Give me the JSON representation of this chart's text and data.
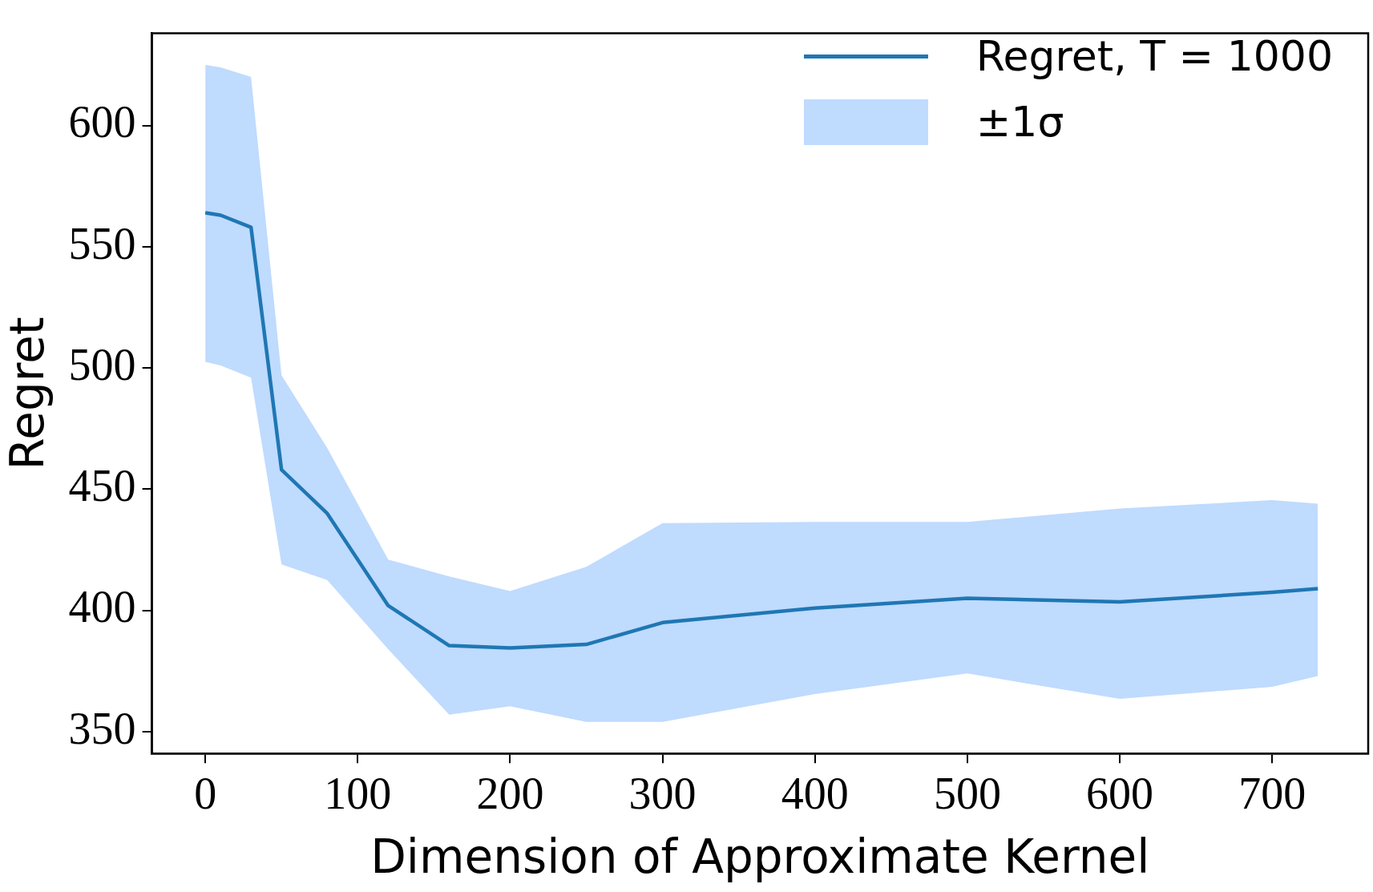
{
  "chart_data": {
    "type": "line",
    "xlabel": "Dimension of Approximate Kernel",
    "ylabel": "Regret",
    "x": [
      0,
      10,
      30,
      50,
      80,
      120,
      160,
      200,
      250,
      300,
      400,
      500,
      600,
      700,
      730
    ],
    "series": [
      {
        "name": "Regret, T = 1000",
        "color": "#1f77b4",
        "values": [
          564,
          563,
          558,
          458,
          440,
          402,
          385.5,
          384.5,
          386,
          395,
          401,
          405,
          403.5,
          407.5,
          409
        ]
      },
      {
        "name": "±1σ",
        "type": "area",
        "color": "#bfdbfe",
        "values": [
          null,
          null,
          null,
          null,
          null,
          null,
          null,
          null,
          null,
          null,
          null,
          null,
          null,
          null,
          null
        ],
        "upper": [
          625,
          624,
          620,
          497,
          467,
          421,
          414,
          408,
          418,
          436,
          436.5,
          436.5,
          442,
          445.5,
          444
        ],
        "lower": [
          502.5,
          501,
          496,
          419,
          412.5,
          384,
          357,
          360.5,
          354,
          354,
          365.5,
          374,
          363.5,
          368.5,
          373
        ]
      }
    ],
    "xlim": [
      -35,
      763
    ],
    "xticks": [
      0,
      100,
      200,
      300,
      400,
      500,
      600,
      700
    ],
    "ylim": [
      341,
      638
    ],
    "yticks": [
      350,
      400,
      450,
      500,
      550,
      600
    ],
    "grid": false,
    "legend": "top right",
    "marker": "none",
    "line_style": "solid"
  }
}
